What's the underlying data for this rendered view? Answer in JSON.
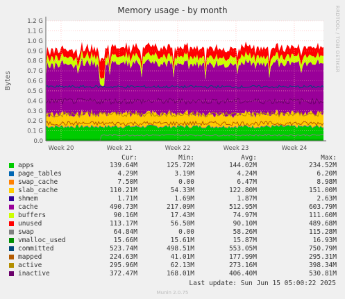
{
  "title": "Memory usage - by month",
  "side_label": "RRDTOOL / TOBI OETIKER",
  "ylabel": "Bytes",
  "yticks": [
    "0.0",
    "0.1 G",
    "0.2 G",
    "0.3 G",
    "0.4 G",
    "0.5 G",
    "0.6 G",
    "0.7 G",
    "0.8 G",
    "0.9 G",
    "1.0 G",
    "1.1 G",
    "1.2 G"
  ],
  "xticks": [
    "Week 20",
    "Week 21",
    "Week 22",
    "Week 23",
    "Week 24"
  ],
  "headers": {
    "cur": "Cur:",
    "min": "Min:",
    "avg": "Avg:",
    "max": "Max:"
  },
  "legend": [
    {
      "name": "apps",
      "color": "#00cc00",
      "cur": "139.64M",
      "min": "125.72M",
      "avg": "144.02M",
      "max": "234.52M"
    },
    {
      "name": "page_tables",
      "color": "#0066b3",
      "cur": "4.29M",
      "min": "3.19M",
      "avg": "4.24M",
      "max": "6.20M"
    },
    {
      "name": "swap_cache",
      "color": "#ff8000",
      "cur": "7.50M",
      "min": "0.00",
      "avg": "6.47M",
      "max": "8.98M"
    },
    {
      "name": "slab_cache",
      "color": "#ffcc00",
      "cur": "110.21M",
      "min": "54.33M",
      "avg": "122.80M",
      "max": "151.00M"
    },
    {
      "name": "shmem",
      "color": "#330099",
      "cur": "1.71M",
      "min": "1.69M",
      "avg": "1.87M",
      "max": "2.63M"
    },
    {
      "name": "cache",
      "color": "#990099",
      "cur": "490.73M",
      "min": "217.09M",
      "avg": "512.95M",
      "max": "603.79M"
    },
    {
      "name": "buffers",
      "color": "#ccff00",
      "cur": "90.16M",
      "min": "17.43M",
      "avg": "74.97M",
      "max": "111.60M"
    },
    {
      "name": "unused",
      "color": "#ff0000",
      "cur": "113.17M",
      "min": "56.50M",
      "avg": "90.10M",
      "max": "489.68M"
    },
    {
      "name": "swap",
      "color": "#808080",
      "cur": "64.84M",
      "min": "0.00",
      "avg": "58.26M",
      "max": "115.28M"
    },
    {
      "name": "vmalloc_used",
      "color": "#008f00",
      "cur": "15.66M",
      "min": "15.61M",
      "avg": "15.87M",
      "max": "16.93M"
    },
    {
      "name": "committed",
      "color": "#00487d",
      "cur": "523.74M",
      "min": "498.51M",
      "avg": "553.05M",
      "max": "750.79M"
    },
    {
      "name": "mapped",
      "color": "#b35a00",
      "cur": "224.63M",
      "min": "41.01M",
      "avg": "177.99M",
      "max": "295.31M"
    },
    {
      "name": "active",
      "color": "#b38f00",
      "cur": "295.96M",
      "min": "62.13M",
      "avg": "273.16M",
      "max": "398.34M"
    },
    {
      "name": "inactive",
      "color": "#6b006b",
      "cur": "372.47M",
      "min": "168.01M",
      "avg": "406.40M",
      "max": "530.81M"
    }
  ],
  "last_update": "Last update: Sun Jun 15 05:00:22 2025",
  "footer": "Munin 2.0.75",
  "chart_data": {
    "type": "area",
    "title": "Memory usage - by month",
    "ylabel": "Bytes",
    "ylim": [
      0,
      1.2
    ],
    "y_unit": "G",
    "x_categories": [
      "Week 20",
      "Week 21",
      "Week 22",
      "Week 23",
      "Week 24"
    ],
    "stacked_series_avg_M": {
      "apps": 144.02,
      "page_tables": 4.24,
      "swap_cache": 6.47,
      "slab_cache": 122.8,
      "shmem": 1.87,
      "cache": 512.95,
      "buffers": 74.97,
      "unused": 90.1
    },
    "line_series_avg_M": {
      "swap": 58.26,
      "vmalloc_used": 15.87,
      "committed": 553.05,
      "mapped": 177.99,
      "active": 273.16,
      "inactive": 406.4
    },
    "grid": true
  },
  "colors": {
    "canvas": "#ffffff",
    "grid": "#ffb0b0",
    "frame": "#666666"
  }
}
